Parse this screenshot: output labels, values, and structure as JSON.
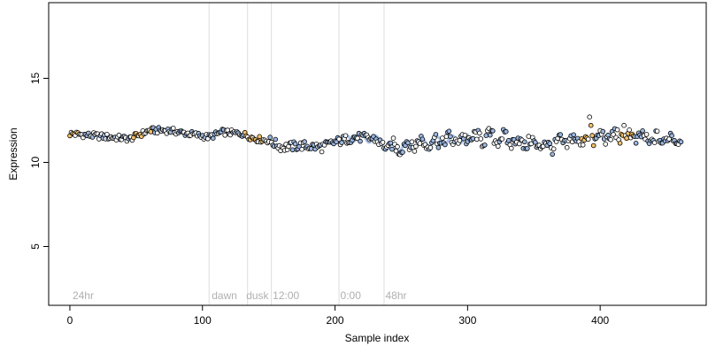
{
  "chart_data": {
    "type": "scatter",
    "xlabel": "Sample index",
    "ylabel": "Expression",
    "xlim": [
      -16,
      480
    ],
    "ylim": [
      1.5,
      19.5
    ],
    "x_ticks": [
      0,
      100,
      200,
      300,
      400
    ],
    "y_ticks": [
      5,
      10,
      15
    ],
    "grid": false,
    "n_samples": 462,
    "vlines": [
      105,
      134,
      152,
      203,
      237
    ],
    "annotations": [
      {
        "text": "24hr",
        "x": 2
      },
      {
        "text": "dawn",
        "x": 107
      },
      {
        "text": "dusk",
        "x": 133
      },
      {
        "text": "12:00",
        "x": 153
      },
      {
        "text": "0:00",
        "x": 204
      },
      {
        "text": "48hr",
        "x": 238
      }
    ],
    "series": [
      {
        "x": [
          2,
          45,
          60,
          75,
          90,
          105,
          115,
          130,
          140,
          150,
          160,
          175,
          190,
          200,
          215,
          230,
          240,
          260,
          280,
          300,
          320,
          340,
          360,
          380,
          400,
          420,
          440,
          462
        ],
        "y": [
          11.7,
          11.4,
          11.9,
          11.9,
          11.7,
          11.5,
          11.8,
          11.7,
          11.4,
          11.3,
          10.9,
          11.0,
          10.9,
          11.2,
          11.5,
          11.4,
          10.8,
          11.1,
          11.3,
          11.4,
          11.5,
          11.2,
          11.0,
          11.3,
          11.5,
          11.6,
          11.3,
          11.5
        ]
      }
    ],
    "colors": {
      "point_outline": "#000000",
      "point_fill_blue": "#9ab6e0",
      "point_fill_orange": "#f5c169",
      "smooth_blue": "#a9c3e8",
      "smooth_orange": "#f3c27a",
      "vline": "#dddddd",
      "annotation": "#b0b0b0"
    }
  }
}
